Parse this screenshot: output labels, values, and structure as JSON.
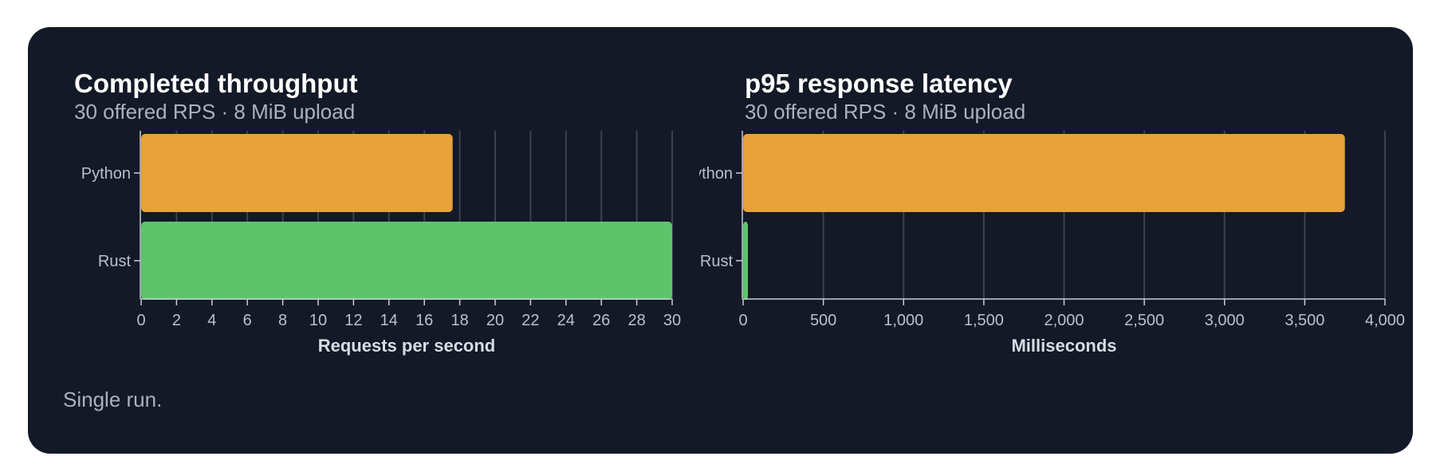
{
  "colors": {
    "background": "#131926",
    "python": "#e8a13b",
    "rust": "#5ec46c",
    "grid": "#3a4252",
    "tick_text": "#b9c0cc",
    "title_text": "#ffffff",
    "subtitle_text": "#a9b2c3"
  },
  "footnote": "Single run.",
  "chart_data": [
    {
      "type": "bar",
      "orientation": "horizontal",
      "title": "Completed throughput",
      "subtitle": "30 offered RPS · 8 MiB upload",
      "xlabel": "Requests per second",
      "ylabel": "",
      "categories": [
        "Python",
        "Rust"
      ],
      "values": [
        17.6,
        30
      ],
      "xlim": [
        0,
        30
      ],
      "xticks": [
        0,
        2,
        4,
        6,
        8,
        10,
        12,
        14,
        16,
        18,
        20,
        22,
        24,
        26,
        28,
        30
      ],
      "xtick_labels": [
        "0",
        "2",
        "4",
        "6",
        "8",
        "10",
        "12",
        "14",
        "16",
        "18",
        "20",
        "22",
        "24",
        "26",
        "28",
        "30"
      ],
      "grid": "vertical",
      "bar_colors": [
        "#e8a13b",
        "#5ec46c"
      ]
    },
    {
      "type": "bar",
      "orientation": "horizontal",
      "title": "p95 response latency",
      "subtitle": "30 offered RPS · 8 MiB upload",
      "xlabel": "Milliseconds",
      "ylabel": "",
      "categories": [
        "Python",
        "Rust"
      ],
      "values": [
        3750,
        30
      ],
      "xlim": [
        0,
        4000
      ],
      "xticks": [
        0,
        500,
        1000,
        1500,
        2000,
        2500,
        3000,
        3500,
        4000
      ],
      "xtick_labels": [
        "0",
        "500",
        "1,000",
        "1,500",
        "2,000",
        "2,500",
        "3,000",
        "3,500",
        "4,000"
      ],
      "grid": "vertical",
      "bar_colors": [
        "#e8a13b",
        "#5ec46c"
      ]
    }
  ]
}
